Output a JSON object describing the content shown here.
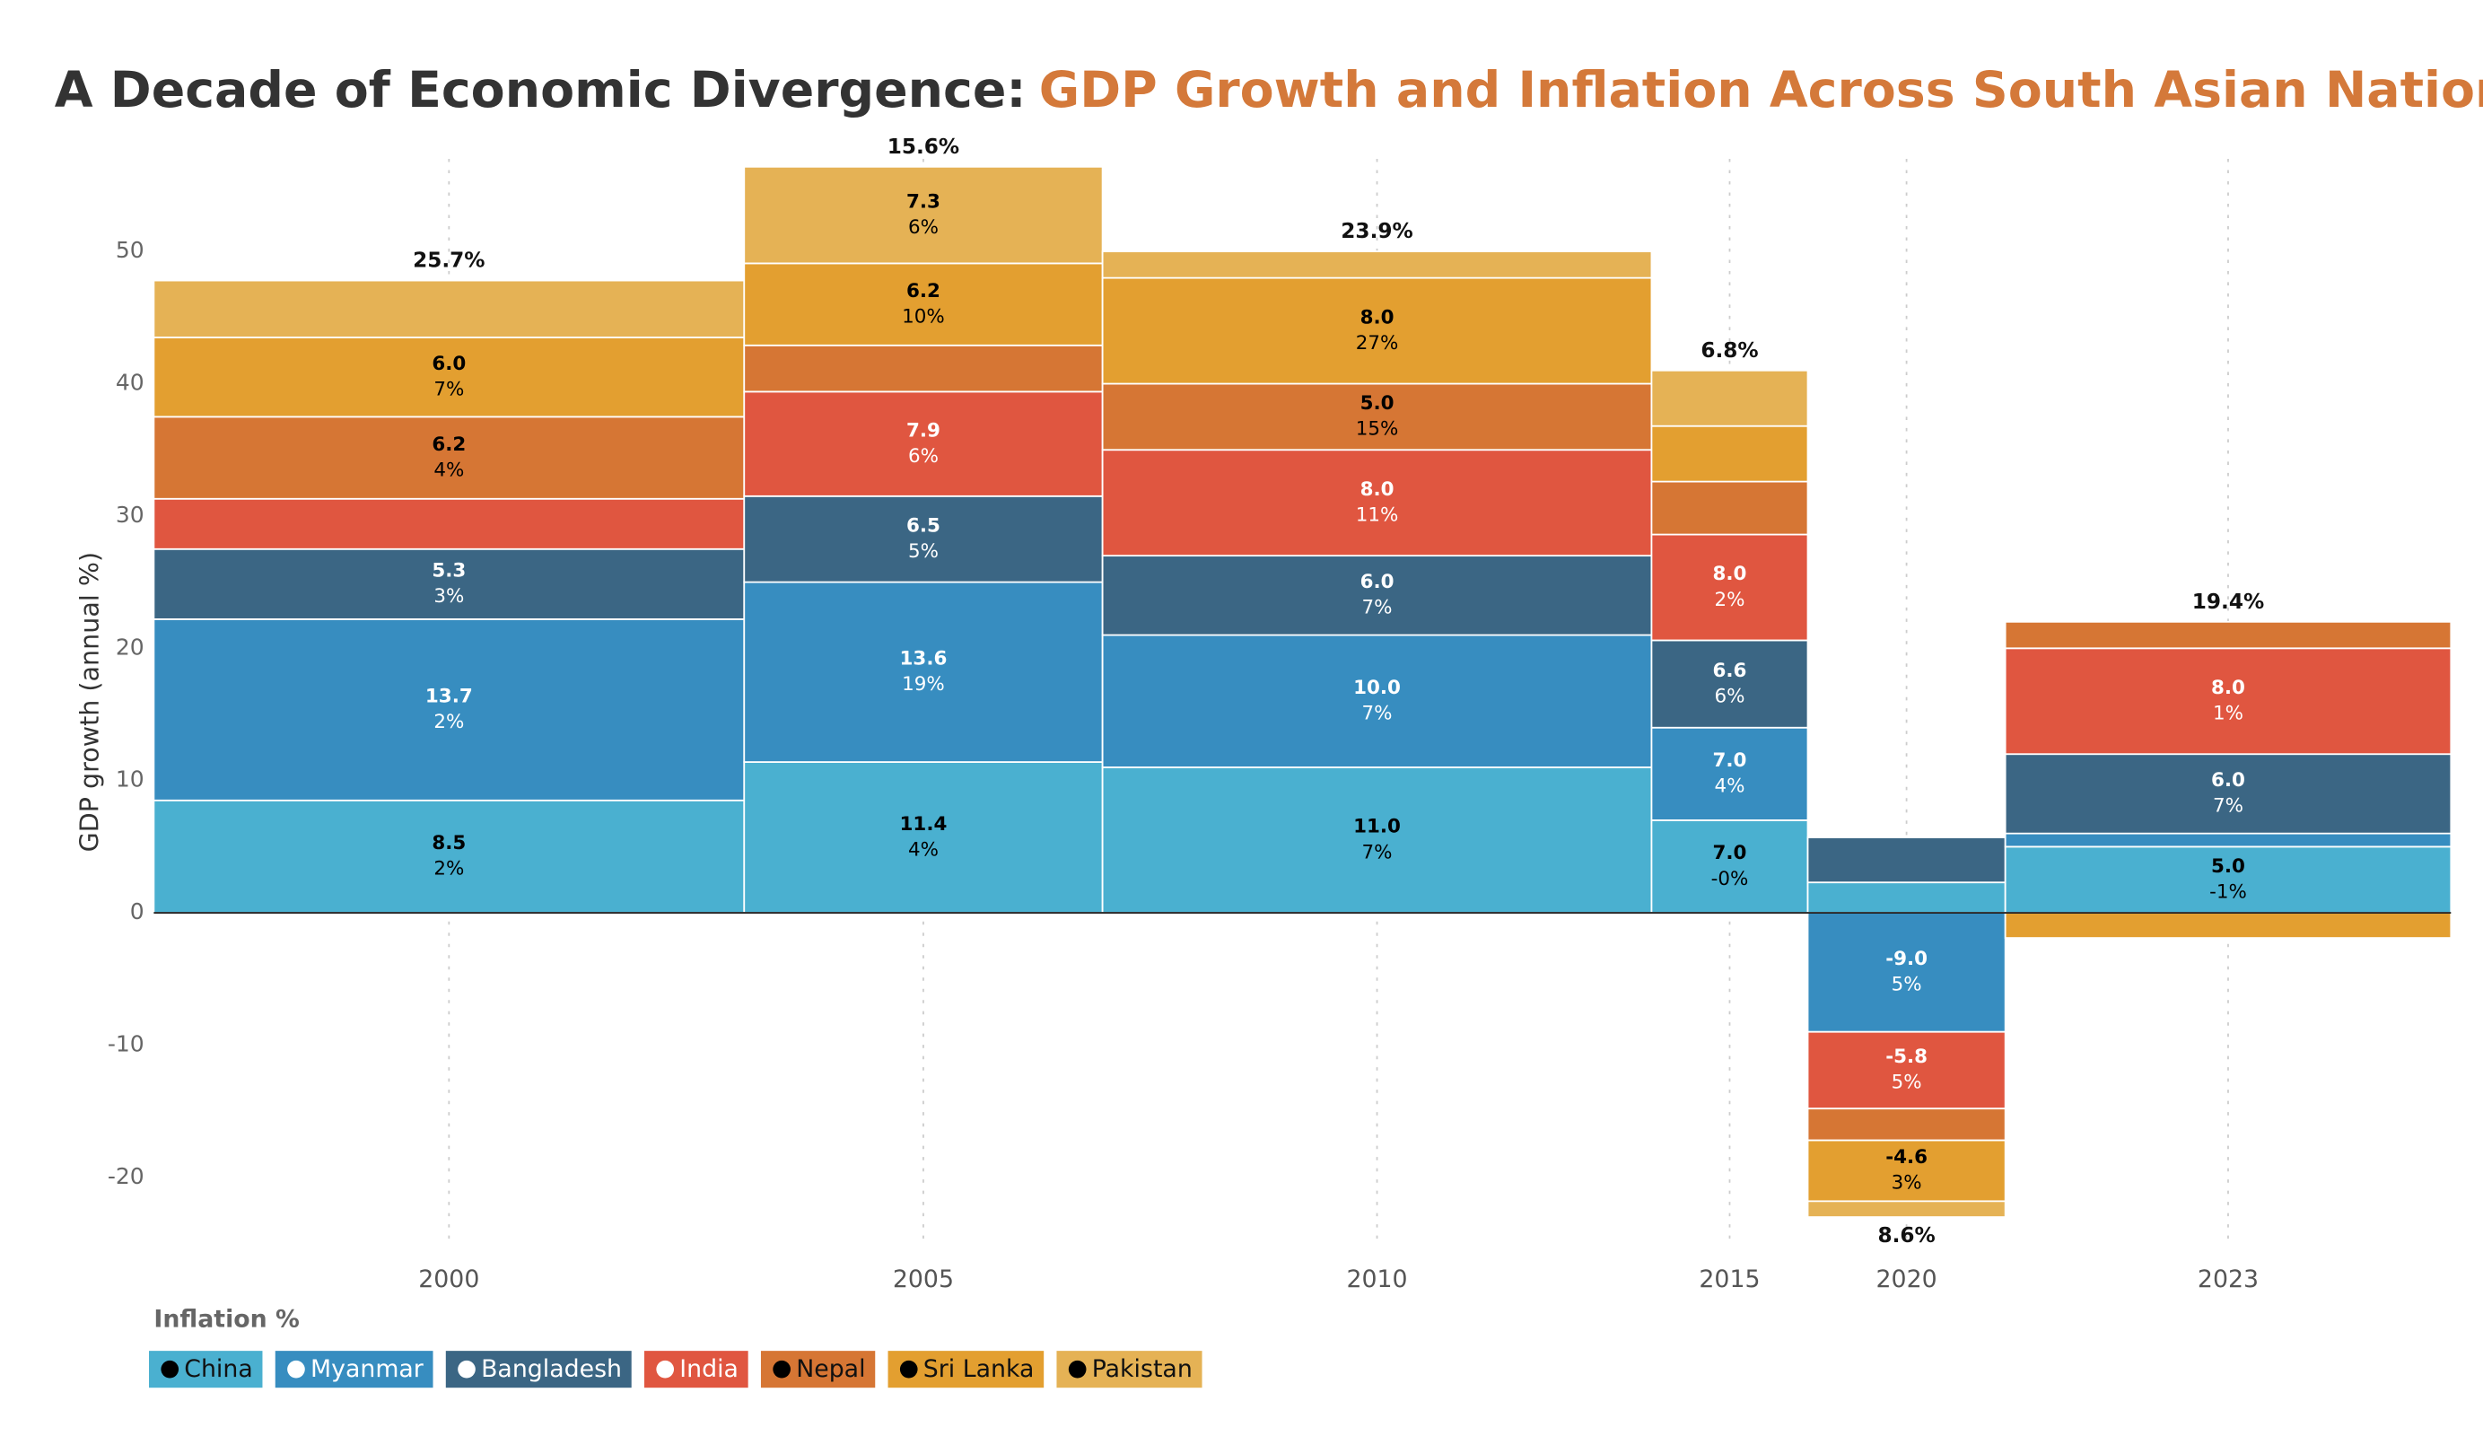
{
  "chart_data": {
    "type": "marimekko",
    "title": "A Decade of Economic Divergence:",
    "title_accent": "GDP Growth and Inflation Across South Asian Nations",
    "y_label": "GDP growth (annual %)",
    "legend_title": "Inflation %",
    "categories": [
      "2000",
      "2005",
      "2010",
      "2015",
      "2020",
      "2023"
    ],
    "widths": [
      25.7,
      15.6,
      23.9,
      6.8,
      8.6,
      19.4
    ],
    "width_labels": [
      "25.7%",
      "15.6%",
      "23.9%",
      "6.8%",
      "8.6%",
      "19.4%"
    ],
    "xlim": [
      0,
      100
    ],
    "ylim": [
      -25,
      57
    ],
    "yticks": [
      -20,
      -10,
      0,
      10,
      20,
      30,
      40,
      50
    ],
    "grid": true,
    "series": [
      {
        "name": "China",
        "color": "#4ab0d0",
        "label_color": "#000000",
        "values": [
          8.5,
          11.4,
          11.0,
          7.0,
          2.3,
          5.0
        ],
        "value_labels": [
          "8.5",
          "11.4",
          "11.0",
          "7.0",
          null,
          "5.0"
        ],
        "inflation": [
          2,
          4,
          7,
          -0.3,
          null,
          -1
        ],
        "inflation_labels": [
          "2%",
          "4%",
          "7%",
          "-0%",
          null,
          "-1%"
        ]
      },
      {
        "name": "Myanmar",
        "color": "#378dc0",
        "label_color": "#ffffff",
        "values": [
          13.7,
          13.6,
          10.0,
          7.0,
          -9.0,
          1.0
        ],
        "value_labels": [
          "13.7",
          "13.6",
          "10.0",
          "7.0",
          "-9.0",
          null
        ],
        "inflation": [
          2,
          19,
          7,
          4,
          5,
          null
        ],
        "inflation_labels": [
          "2%",
          "19%",
          "7%",
          "4%",
          "5%",
          null
        ]
      },
      {
        "name": "Bangladesh",
        "color": "#3b6684",
        "label_color": "#ffffff",
        "values": [
          5.3,
          6.5,
          6.0,
          6.6,
          3.4,
          6.0
        ],
        "value_labels": [
          "5.3",
          "6.5",
          "6.0",
          "6.6",
          null,
          "6.0"
        ],
        "inflation": [
          3,
          5,
          7,
          6,
          null,
          7
        ],
        "inflation_labels": [
          "3%",
          "5%",
          "7%",
          "6%",
          null,
          "7%"
        ]
      },
      {
        "name": "India",
        "color": "#e05640",
        "label_color": "#ffffff",
        "values": [
          3.8,
          7.9,
          8.0,
          8.0,
          -5.8,
          8.0
        ],
        "value_labels": [
          null,
          "7.9",
          "8.0",
          "8.0",
          "-5.8",
          "8.0"
        ],
        "inflation": [
          null,
          6,
          11,
          2,
          5,
          1
        ],
        "inflation_labels": [
          null,
          "6%",
          "11%",
          "2%",
          "5%",
          "1%"
        ]
      },
      {
        "name": "Nepal",
        "color": "#d67634",
        "label_color": "#000000",
        "values": [
          6.2,
          3.5,
          5.0,
          4.0,
          -2.4,
          2.0
        ],
        "value_labels": [
          "6.2",
          null,
          "5.0",
          null,
          null,
          null
        ],
        "inflation": [
          4,
          null,
          15,
          null,
          null,
          null
        ],
        "inflation_labels": [
          "4%",
          null,
          "15%",
          null,
          null,
          null
        ]
      },
      {
        "name": "Sri Lanka",
        "color": "#e39f30",
        "label_color": "#000000",
        "values": [
          6.0,
          6.2,
          8.0,
          4.2,
          -4.6,
          -1.9
        ],
        "value_labels": [
          "6.0",
          "6.2",
          "8.0",
          null,
          "-4.6",
          null
        ],
        "inflation": [
          7,
          10,
          27,
          null,
          3,
          null
        ],
        "inflation_labels": [
          "7%",
          "10%",
          "27%",
          null,
          "3%",
          null
        ]
      },
      {
        "name": "Pakistan",
        "color": "#e5b255",
        "label_color": "#000000",
        "values": [
          4.3,
          7.3,
          2.0,
          4.2,
          -1.2,
          null
        ],
        "value_labels": [
          null,
          "7.3",
          null,
          null,
          null,
          null
        ],
        "inflation": [
          null,
          6,
          null,
          null,
          null,
          null
        ],
        "inflation_labels": [
          null,
          "6%",
          null,
          null,
          null,
          null
        ]
      }
    ]
  }
}
